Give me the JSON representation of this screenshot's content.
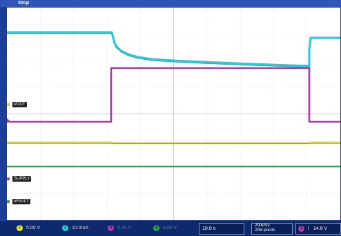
{
  "acquisition": {
    "state": "Stop"
  },
  "channels": [
    {
      "id": "1",
      "color": "#e6e62e",
      "scale": "5.00 V"
    },
    {
      "id": "2",
      "color": "#2ec8d8",
      "scale": "10.0mA"
    },
    {
      "id": "3",
      "color": "#b03aa8",
      "scale": "5.00 V"
    },
    {
      "id": "4",
      "color": "#27a64a",
      "scale": "5.00 V"
    }
  ],
  "labels": {
    "vout": "VOUT",
    "supply": "SUPPLY",
    "nfault": "nFAULT"
  },
  "timebase": {
    "scale": "10.0 s"
  },
  "sampling": {
    "rate": "200kS/s",
    "points": "20M points"
  },
  "trigger": {
    "channel": "3",
    "slope": "/",
    "level": "14.6 V"
  },
  "colors": {
    "bezel": "#1b3f96",
    "grid": "#c8c8c8",
    "ch1": "#d7d32a",
    "ch2": "#2ec8d8",
    "ch3": "#a33ea0",
    "ch4": "#27a64a"
  },
  "icons": [
    "trigger-marker-icon",
    "channel-ground-marker-icon"
  ]
}
